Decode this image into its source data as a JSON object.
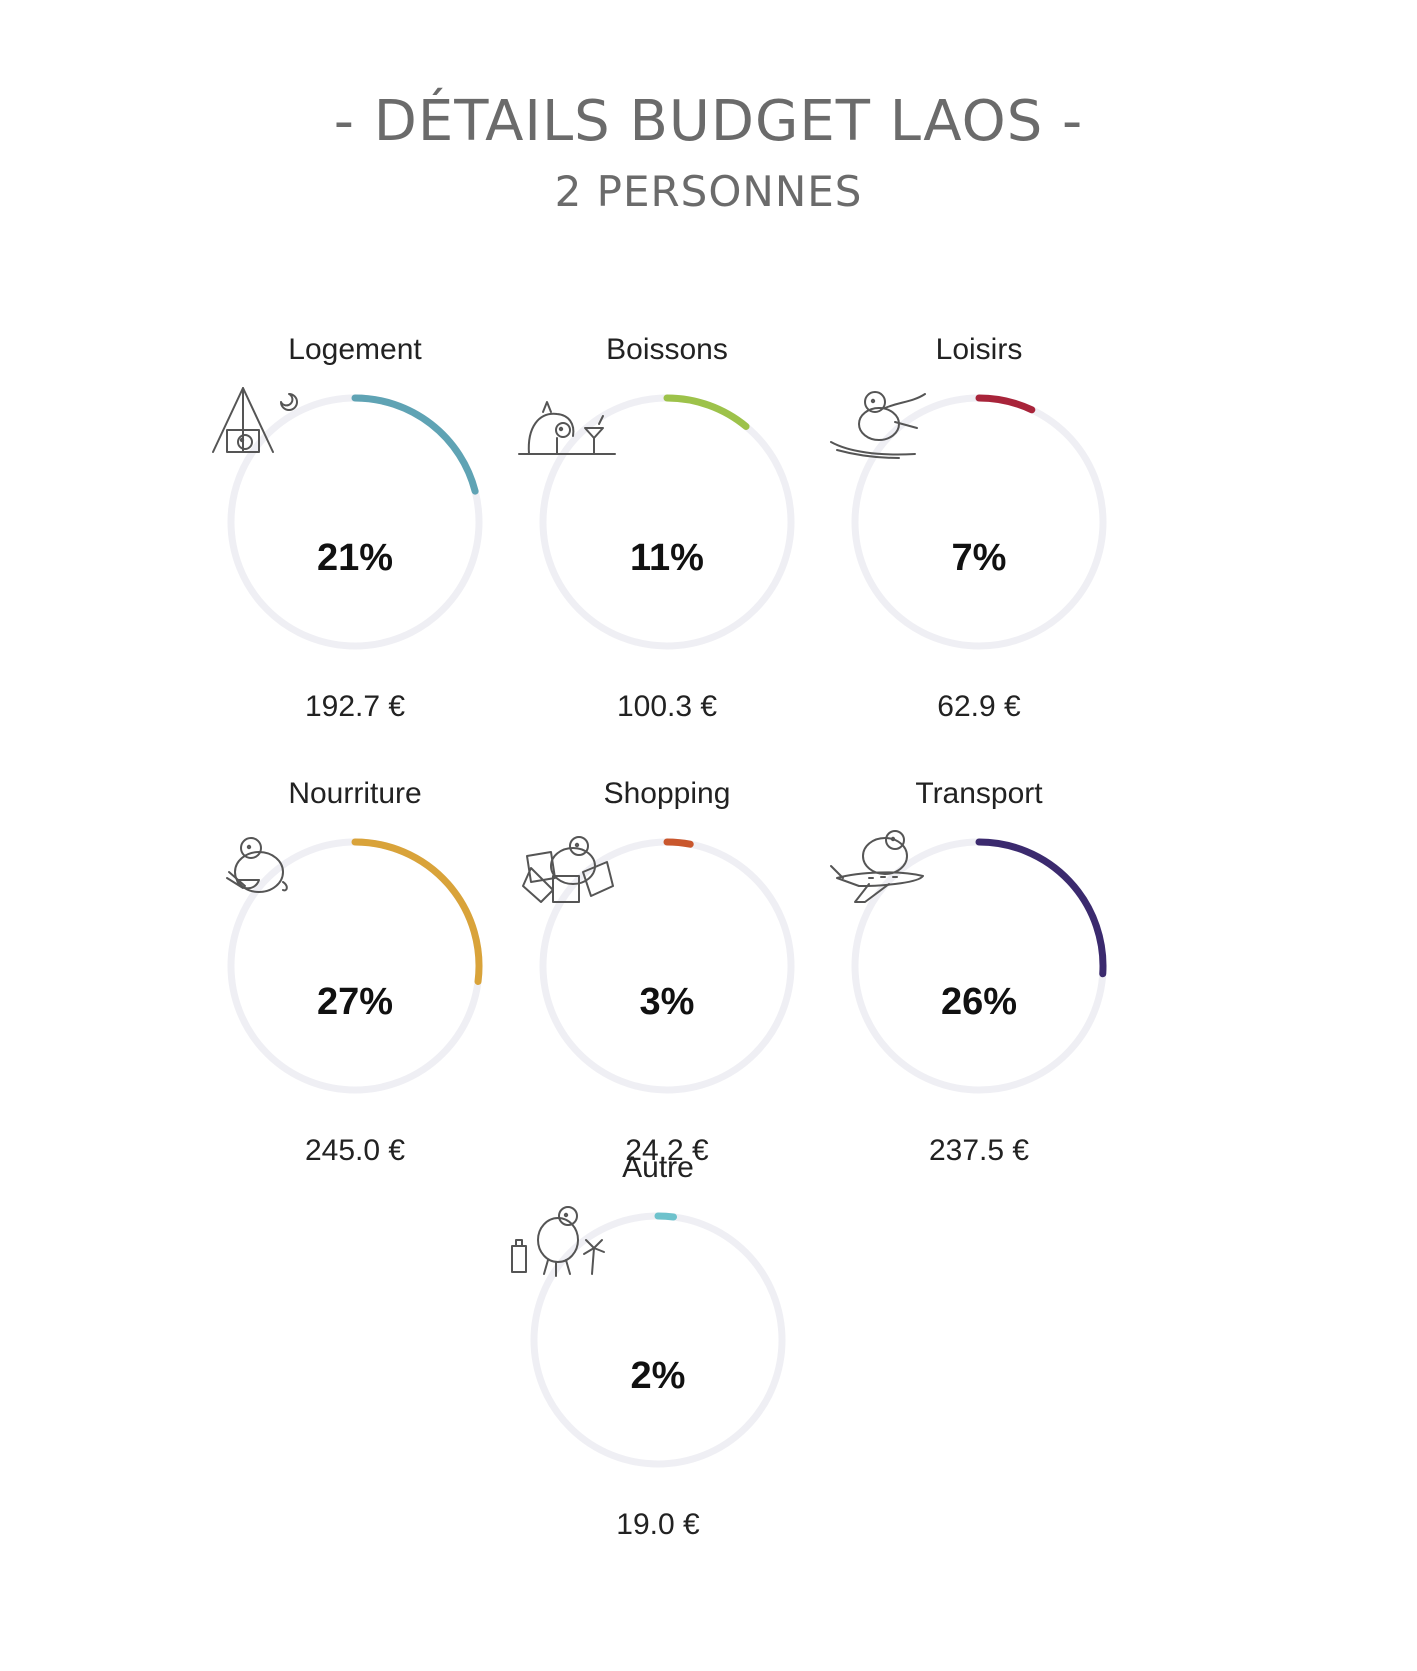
{
  "header": {
    "title": "- DÉTAILS BUDGET LAOS -",
    "subtitle": "2 PERSONNES"
  },
  "colors": {
    "track": "#efeff4",
    "logement": "#5fa3b4",
    "boissons": "#9dc24a",
    "loisirs": "#a8243a",
    "nourriture": "#d9a33a",
    "shopping": "#c9572d",
    "transport": "#3b2a6e",
    "autre": "#6ec2cc"
  },
  "chart_data": {
    "type": "donut",
    "title": "- DÉTAILS BUDGET LAOS -",
    "subtitle": "2 PERSONNES",
    "categories": [
      "Logement",
      "Boissons",
      "Loisirs",
      "Nourriture",
      "Shopping",
      "Transport",
      "Autre"
    ],
    "items": [
      {
        "label": "Logement",
        "percent": 21,
        "percent_label": "21%",
        "amount": 192.7,
        "amount_label": "192.7 €",
        "color": "#5fa3b4",
        "icon": "tent-icon"
      },
      {
        "label": "Boissons",
        "percent": 11,
        "percent_label": "11%",
        "amount": 100.3,
        "amount_label": "100.3 €",
        "color": "#9dc24a",
        "icon": "cocktail-icon"
      },
      {
        "label": "Loisirs",
        "percent": 7,
        "percent_label": "7%",
        "amount": 62.9,
        "amount_label": "62.9 €",
        "color": "#a8243a",
        "icon": "ski-icon"
      },
      {
        "label": "Nourriture",
        "percent": 27,
        "percent_label": "27%",
        "amount": 245.0,
        "amount_label": "245.0 €",
        "color": "#d9a33a",
        "icon": "food-bowl-icon"
      },
      {
        "label": "Shopping",
        "percent": 3,
        "percent_label": "3%",
        "amount": 24.2,
        "amount_label": "24.2 €",
        "color": "#c9572d",
        "icon": "shopping-bags-icon"
      },
      {
        "label": "Transport",
        "percent": 26,
        "percent_label": "26%",
        "amount": 237.5,
        "amount_label": "237.5 €",
        "color": "#3b2a6e",
        "icon": "airplane-icon"
      },
      {
        "label": "Autre",
        "percent": 2,
        "percent_label": "2%",
        "amount": 19.0,
        "amount_label": "19.0 €",
        "color": "#6ec2cc",
        "icon": "suitcase-icon"
      }
    ]
  }
}
